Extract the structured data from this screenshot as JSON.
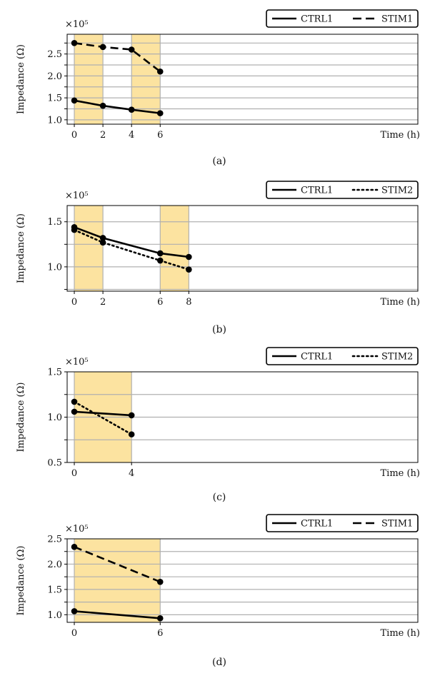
{
  "colors": {
    "shade": "#FCE3A0",
    "grid": "#b0b0b0",
    "line": "#000000",
    "axis": "#000000"
  },
  "chart_data": [
    {
      "type": "line",
      "caption": "(a)",
      "xlabel": "Time (h)",
      "ylabel": "Impedance (Ω)",
      "multiplier": "×10⁵",
      "xlim": [
        -0.5,
        24
      ],
      "ylim": [
        0.9,
        2.95
      ],
      "xticks": [
        0,
        2,
        4,
        6
      ],
      "yticks": [
        1.0,
        1.5,
        2.0,
        2.5
      ],
      "ygrid": [
        1.0,
        1.25,
        1.5,
        1.75,
        2.0,
        2.25,
        2.5,
        2.75
      ],
      "shaded": [
        [
          0,
          2
        ],
        [
          4,
          6
        ]
      ],
      "legend_loc": "top-right",
      "series": [
        {
          "name": "CTRL1",
          "style": "solid",
          "x": [
            0,
            2,
            4,
            6
          ],
          "y": [
            1.44,
            1.32,
            1.23,
            1.15
          ]
        },
        {
          "name": "STIM1",
          "style": "dashed",
          "x": [
            0,
            2,
            4,
            6
          ],
          "y": [
            2.75,
            2.66,
            2.6,
            2.1
          ]
        }
      ]
    },
    {
      "type": "line",
      "caption": "(b)",
      "xlabel": "Time (h)",
      "ylabel": "Impedance (Ω)",
      "multiplier": "×10⁵",
      "xlim": [
        -0.5,
        24
      ],
      "ylim": [
        0.73,
        1.68
      ],
      "xticks": [
        0,
        2,
        6,
        8
      ],
      "yticks": [
        1.0,
        1.5
      ],
      "ygrid": [
        0.75,
        1.0,
        1.25,
        1.5
      ],
      "shaded": [
        [
          0,
          2
        ],
        [
          6,
          8
        ]
      ],
      "legend_loc": "top-right",
      "series": [
        {
          "name": "CTRL1",
          "style": "solid",
          "x": [
            0,
            2,
            6,
            8
          ],
          "y": [
            1.44,
            1.32,
            1.15,
            1.11
          ]
        },
        {
          "name": "STIM2",
          "style": "dotted",
          "x": [
            0,
            2,
            6,
            8
          ],
          "y": [
            1.41,
            1.27,
            1.07,
            0.97
          ]
        }
      ]
    },
    {
      "type": "line",
      "caption": "(c)",
      "xlabel": "Time (h)",
      "ylabel": "Impedance (Ω)",
      "multiplier": "×10⁵",
      "xlim": [
        -0.5,
        24
      ],
      "ylim": [
        0.5,
        1.5
      ],
      "xticks": [
        0,
        4
      ],
      "yticks": [
        0.5,
        1.0,
        1.5
      ],
      "ygrid": [
        0.75,
        1.0,
        1.25
      ],
      "shaded": [
        [
          0,
          4
        ]
      ],
      "legend_loc": "top-right",
      "series": [
        {
          "name": "CTRL1",
          "style": "solid",
          "x": [
            0,
            4
          ],
          "y": [
            1.06,
            1.02
          ]
        },
        {
          "name": "STIM2",
          "style": "dotted",
          "x": [
            0,
            4
          ],
          "y": [
            1.17,
            0.81
          ]
        }
      ]
    },
    {
      "type": "line",
      "caption": "(d)",
      "xlabel": "Time (h)",
      "ylabel": "Impedance (Ω)",
      "multiplier": "×10⁵",
      "xlim": [
        -0.5,
        24
      ],
      "ylim": [
        0.85,
        2.5
      ],
      "xticks": [
        0,
        6
      ],
      "yticks": [
        1.0,
        1.5,
        2.0,
        2.5
      ],
      "ygrid": [
        1.0,
        1.25,
        1.5,
        1.75,
        2.0,
        2.25
      ],
      "shaded": [
        [
          0,
          6
        ]
      ],
      "legend_loc": "top-right",
      "series": [
        {
          "name": "CTRL1",
          "style": "solid",
          "x": [
            0,
            6
          ],
          "y": [
            1.07,
            0.93
          ]
        },
        {
          "name": "STIM1",
          "style": "dashed",
          "x": [
            0,
            6
          ],
          "y": [
            2.34,
            1.65
          ]
        }
      ]
    }
  ]
}
